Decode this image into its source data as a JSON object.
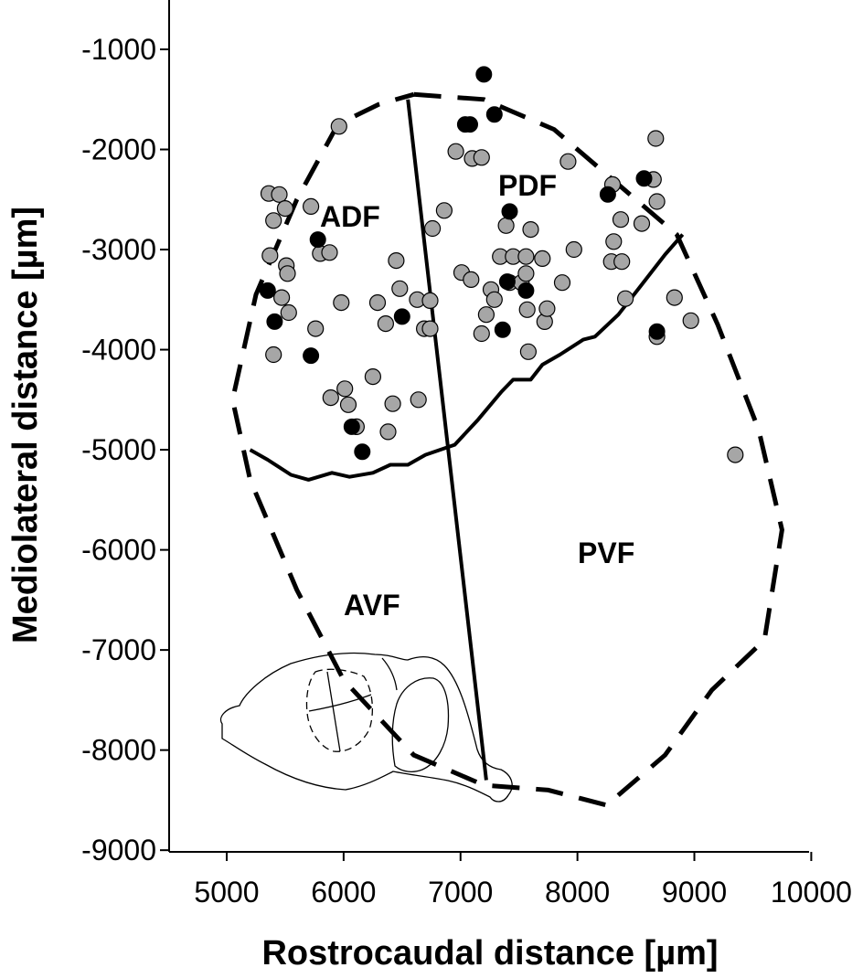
{
  "chart_data": {
    "type": "scatter",
    "xlabel": "Rostrocaudal distance [µm]",
    "ylabel": "Mediolateral distance [µm]",
    "xlim": [
      4500,
      10000
    ],
    "ylim": [
      -9000,
      -500
    ],
    "x_ticks": [
      5000,
      6000,
      7000,
      8000,
      9000,
      10000
    ],
    "x_tick_labels": [
      "5000",
      "6000",
      "7000",
      "8000",
      "9000",
      "10000"
    ],
    "y_ticks": [
      -1000,
      -2000,
      -3000,
      -4000,
      -5000,
      -6000,
      -7000,
      -8000,
      -9000
    ],
    "y_tick_labels": [
      "-1000",
      "-2000",
      "-3000",
      "-4000",
      "-5000",
      "-6000",
      "-7000",
      "-8000",
      "-9000"
    ],
    "grid": false,
    "series": [
      {
        "marker": "gray-circle",
        "color": "#a6a6a6",
        "points": [
          [
            5960,
            -1770
          ],
          [
            5360,
            -2440
          ],
          [
            5450,
            -2450
          ],
          [
            5400,
            -2710
          ],
          [
            5500,
            -2590
          ],
          [
            5720,
            -2570
          ],
          [
            5370,
            -3060
          ],
          [
            5510,
            -3160
          ],
          [
            5520,
            -3240
          ],
          [
            5470,
            -3480
          ],
          [
            5530,
            -3630
          ],
          [
            5400,
            -4050
          ],
          [
            5760,
            -3790
          ],
          [
            5800,
            -3040
          ],
          [
            5880,
            -3030
          ],
          [
            5980,
            -3530
          ],
          [
            6010,
            -4390
          ],
          [
            6040,
            -4550
          ],
          [
            5890,
            -4480
          ],
          [
            6110,
            -4770
          ],
          [
            6250,
            -4270
          ],
          [
            6290,
            -3530
          ],
          [
            6360,
            -3740
          ],
          [
            6380,
            -4820
          ],
          [
            6420,
            -4540
          ],
          [
            6450,
            -3110
          ],
          [
            6480,
            -3390
          ],
          [
            6630,
            -3500
          ],
          [
            6640,
            -4500
          ],
          [
            6690,
            -3790
          ],
          [
            6740,
            -3510
          ],
          [
            6740,
            -3790
          ],
          [
            6760,
            -2790
          ],
          [
            6860,
            -2610
          ],
          [
            6960,
            -2020
          ],
          [
            7010,
            -3230
          ],
          [
            7090,
            -3300
          ],
          [
            7100,
            -2090
          ],
          [
            7180,
            -2080
          ],
          [
            7180,
            -3840
          ],
          [
            7220,
            -3650
          ],
          [
            7260,
            -3400
          ],
          [
            7290,
            -3500
          ],
          [
            7340,
            -3070
          ],
          [
            7390,
            -2760
          ],
          [
            7420,
            -3330
          ],
          [
            7450,
            -3070
          ],
          [
            7520,
            -3330
          ],
          [
            7560,
            -3070
          ],
          [
            7560,
            -3240
          ],
          [
            7570,
            -3600
          ],
          [
            7580,
            -4020
          ],
          [
            7600,
            -2800
          ],
          [
            7700,
            -3090
          ],
          [
            7720,
            -3720
          ],
          [
            7740,
            -3590
          ],
          [
            7870,
            -3330
          ],
          [
            7920,
            -2120
          ],
          [
            7970,
            -3000
          ],
          [
            8300,
            -2350
          ],
          [
            8290,
            -3120
          ],
          [
            8310,
            -2920
          ],
          [
            8370,
            -2700
          ],
          [
            8380,
            -3120
          ],
          [
            8410,
            -3490
          ],
          [
            8550,
            -2740
          ],
          [
            8650,
            -2300
          ],
          [
            8680,
            -2520
          ],
          [
            8670,
            -1890
          ],
          [
            8680,
            -3870
          ],
          [
            8830,
            -3480
          ],
          [
            8970,
            -3710
          ],
          [
            9350,
            -5050
          ]
        ]
      },
      {
        "marker": "black-circle",
        "color": "#000000",
        "points": [
          [
            7200,
            -1250
          ],
          [
            7040,
            -1750
          ],
          [
            7080,
            -1750
          ],
          [
            7290,
            -1650
          ],
          [
            7420,
            -2620
          ],
          [
            7400,
            -3320
          ],
          [
            7360,
            -3800
          ],
          [
            7560,
            -3410
          ],
          [
            8260,
            -2450
          ],
          [
            8570,
            -2290
          ],
          [
            5350,
            -3410
          ],
          [
            5410,
            -3720
          ],
          [
            5780,
            -2900
          ],
          [
            5720,
            -4060
          ],
          [
            6500,
            -3670
          ],
          [
            6070,
            -4770
          ],
          [
            6160,
            -5020
          ],
          [
            8680,
            -3820
          ]
        ]
      }
    ],
    "boundary_dashed": [
      [
        6600,
        -1450
      ],
      [
        7200,
        -1500
      ],
      [
        7800,
        -1800
      ],
      [
        8300,
        -2300
      ],
      [
        8850,
        -2850
      ],
      [
        9200,
        -3750
      ],
      [
        9550,
        -4800
      ],
      [
        9750,
        -5800
      ],
      [
        9600,
        -6900
      ],
      [
        9150,
        -7400
      ],
      [
        8750,
        -8050
      ],
      [
        8250,
        -8550
      ],
      [
        7750,
        -8400
      ],
      [
        7200,
        -8350
      ],
      [
        6600,
        -8050
      ],
      [
        6000,
        -7300
      ],
      [
        5600,
        -6400
      ],
      [
        5200,
        -5300
      ],
      [
        5050,
        -4500
      ],
      [
        5250,
        -3450
      ],
      [
        5600,
        -2500
      ],
      [
        5950,
        -1750
      ],
      [
        6300,
        -1550
      ],
      [
        6600,
        -1450
      ]
    ],
    "anterior_posterior_divider": [
      [
        6550,
        -1500
      ],
      [
        7220,
        -8300
      ]
    ],
    "dorsal_ventral_divider": [
      [
        5200,
        -5000
      ],
      [
        5350,
        -5100
      ],
      [
        5550,
        -5250
      ],
      [
        5700,
        -5300
      ],
      [
        5900,
        -5230
      ],
      [
        6050,
        -5270
      ],
      [
        6250,
        -5230
      ],
      [
        6400,
        -5150
      ],
      [
        6550,
        -5150
      ],
      [
        6700,
        -5050
      ],
      [
        6950,
        -4950
      ],
      [
        7150,
        -4700
      ],
      [
        7350,
        -4420
      ],
      [
        7450,
        -4300
      ],
      [
        7600,
        -4300
      ],
      [
        7700,
        -4150
      ],
      [
        7850,
        -4050
      ],
      [
        8050,
        -3900
      ],
      [
        8150,
        -3870
      ],
      [
        8350,
        -3650
      ],
      [
        8550,
        -3350
      ],
      [
        8750,
        -3050
      ],
      [
        8900,
        -2850
      ]
    ],
    "region_labels": [
      "ADF",
      "PDF",
      "AVF",
      "PVF"
    ]
  }
}
